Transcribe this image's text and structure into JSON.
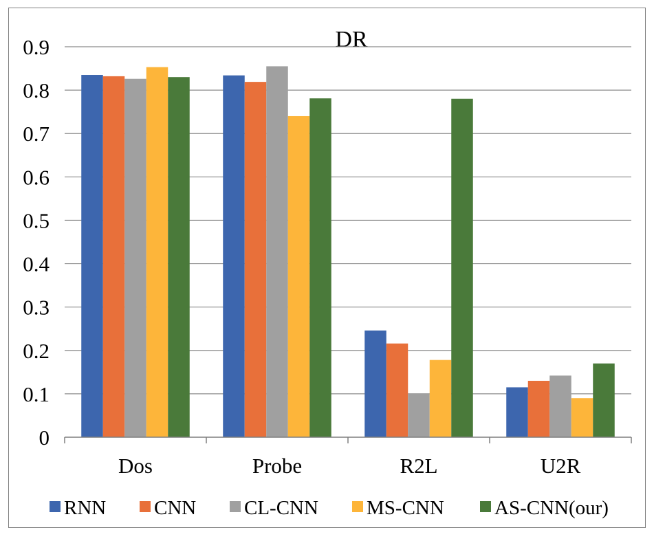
{
  "chart_data": {
    "type": "bar",
    "title": "DR",
    "xlabel": "",
    "ylabel": "",
    "ylim": [
      0,
      0.9
    ],
    "yticks": [
      "0",
      "0.1",
      "0.2",
      "0.3",
      "0.4",
      "0.5",
      "0.6",
      "0.7",
      "0.8",
      "0.9"
    ],
    "grid": true,
    "legend_position": "bottom",
    "categories": [
      "Dos",
      "Probe",
      "R2L",
      "U2R"
    ],
    "series": [
      {
        "name": "RNN",
        "color": "#3d66ae",
        "values": [
          0.835,
          0.834,
          0.246,
          0.115
        ]
      },
      {
        "name": "CNN",
        "color": "#e8703a",
        "values": [
          0.832,
          0.819,
          0.216,
          0.13
        ]
      },
      {
        "name": "CL-CNN",
        "color": "#a0a0a0",
        "values": [
          0.826,
          0.855,
          0.1,
          0.142
        ]
      },
      {
        "name": "MS-CNN",
        "color": "#fdb53a",
        "values": [
          0.853,
          0.74,
          0.178,
          0.09
        ]
      },
      {
        "name": "AS-CNN(our)",
        "color": "#4a7a3a",
        "values": [
          0.83,
          0.781,
          0.78,
          0.17
        ]
      }
    ]
  }
}
